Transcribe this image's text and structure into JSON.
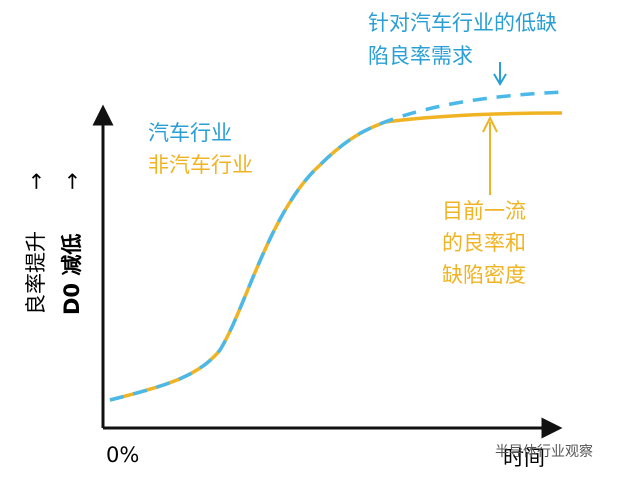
{
  "target_note": {
    "lines": [
      "针对汽车行业的低缺",
      "陷良率需求"
    ]
  },
  "legend": {
    "automotive": "汽车行业",
    "non_automotive": "非汽车行业"
  },
  "current_note": {
    "lines": [
      "目前一流",
      "的良率和",
      "缺陷密度"
    ]
  },
  "y_axis": {
    "label_1": "良率提升",
    "label_2": "D0 减低",
    "arrow": "→"
  },
  "x_axis": {
    "origin": "0%",
    "label": "时间"
  },
  "watermark": "半导体行业观察"
}
